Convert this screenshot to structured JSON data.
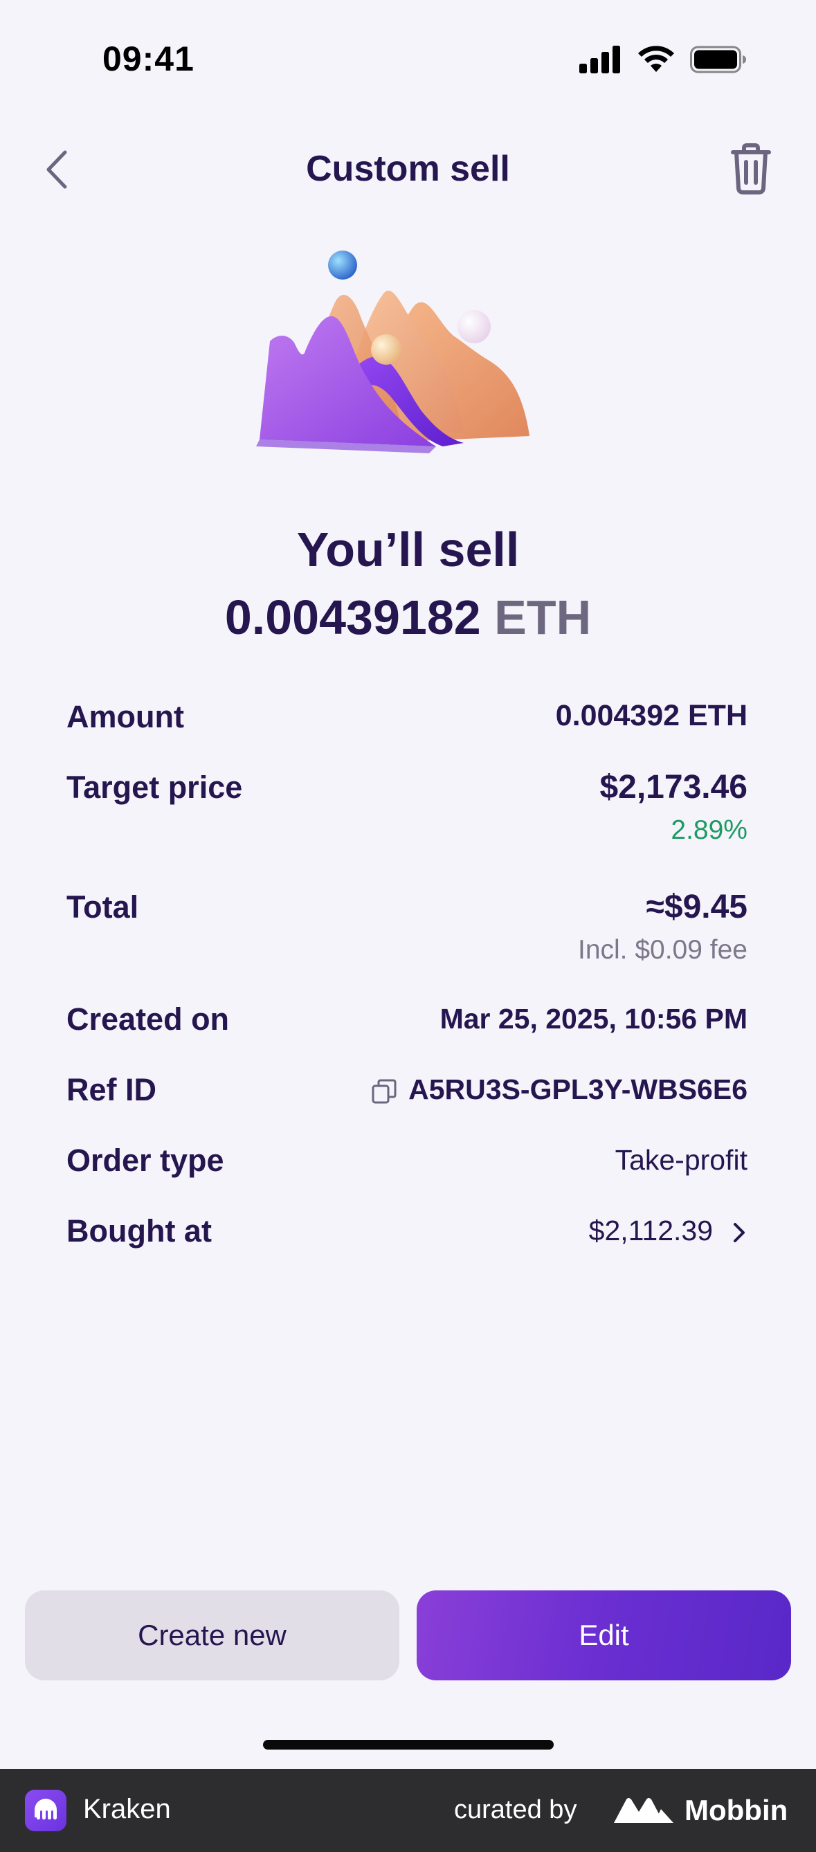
{
  "status_bar": {
    "time": "09:41"
  },
  "nav": {
    "title": "Custom sell",
    "back_icon": "chevron-left-icon",
    "trash_icon": "trash-icon"
  },
  "headline": {
    "line1": "You’ll sell",
    "amount": "0.00439182",
    "unit": "ETH"
  },
  "details": {
    "amount": {
      "label": "Amount",
      "value": "0.004392 ETH"
    },
    "target_price": {
      "label": "Target price",
      "value": "$2,173.46",
      "change": "2.89%"
    },
    "total": {
      "label": "Total",
      "value": "≈$9.45",
      "fee": "Incl. $0.09 fee"
    },
    "created_on": {
      "label": "Created on",
      "value": "Mar 25, 2025, 10:56 PM"
    },
    "ref_id": {
      "label": "Ref ID",
      "value": "A5RU3S-GPL3Y-WBS6E6"
    },
    "order_type": {
      "label": "Order type",
      "value": "Take-profit"
    },
    "bought_at": {
      "label": "Bought at",
      "value": "$2,112.39"
    }
  },
  "buttons": {
    "create_new": "Create new",
    "edit": "Edit"
  },
  "footer": {
    "app_name": "Kraken",
    "curated_by": "curated by",
    "brand": "Mobbin"
  },
  "colors": {
    "primary": "#6a2ed1",
    "text": "#25164f",
    "positive": "#1e9a64",
    "muted": "#7d778c"
  }
}
